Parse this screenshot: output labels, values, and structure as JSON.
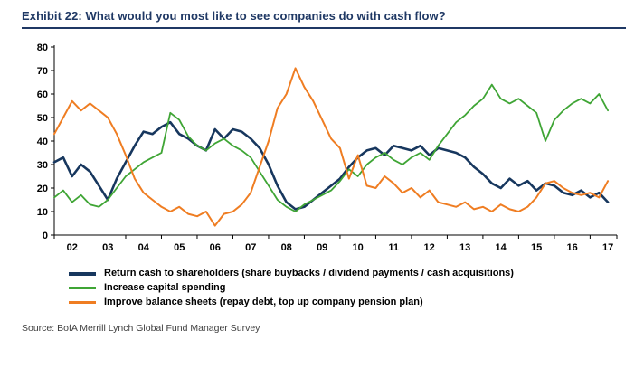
{
  "header": {
    "title": "Exhibit 22: What would you most like to see companies do with cash flow?"
  },
  "footer": {
    "source": "Source: BofA Merrill Lynch Global Fund Manager Survey"
  },
  "colors": {
    "title_navy": "#1F3864",
    "axis_black": "#000000"
  },
  "chart_data": {
    "type": "line",
    "title": "Exhibit 22: What would you most like to see companies do with cash flow?",
    "xlabel": "",
    "ylabel": "",
    "xlim": [
      2002,
      2017.75
    ],
    "ylim": [
      0,
      80
    ],
    "y_ticks": [
      0,
      10,
      20,
      30,
      40,
      50,
      60,
      70,
      80
    ],
    "x_tick_labels": [
      "02",
      "03",
      "04",
      "05",
      "06",
      "07",
      "08",
      "09",
      "10",
      "11",
      "12",
      "13",
      "14",
      "15",
      "16",
      "17"
    ],
    "grid": false,
    "legend_position": "bottom",
    "x": [
      2002,
      2002.25,
      2002.5,
      2002.75,
      2003,
      2003.25,
      2003.5,
      2003.75,
      2004,
      2004.25,
      2004.5,
      2004.75,
      2005,
      2005.25,
      2005.5,
      2005.75,
      2006,
      2006.25,
      2006.5,
      2006.75,
      2007,
      2007.25,
      2007.5,
      2007.75,
      2008,
      2008.25,
      2008.5,
      2008.75,
      2009,
      2009.25,
      2009.5,
      2009.75,
      2010,
      2010.25,
      2010.5,
      2010.75,
      2011,
      2011.25,
      2011.5,
      2011.75,
      2012,
      2012.25,
      2012.5,
      2012.75,
      2013,
      2013.25,
      2013.5,
      2013.75,
      2014,
      2014.25,
      2014.5,
      2014.75,
      2015,
      2015.25,
      2015.5,
      2015.75,
      2016,
      2016.25,
      2016.5,
      2016.75,
      2017,
      2017.25,
      2017.5
    ],
    "series": [
      {
        "name": "Return cash to shareholders (share buybacks / dividend payments / cash acquisitions)",
        "color": "#17375E",
        "width": 2.6,
        "values": [
          31,
          33,
          25,
          30,
          27,
          21,
          15,
          24,
          31,
          38,
          44,
          43,
          46,
          48,
          43,
          41,
          38,
          36,
          45,
          41,
          45,
          44,
          41,
          37,
          30,
          21,
          14,
          11,
          12,
          15,
          18,
          21,
          24,
          29,
          33,
          36,
          37,
          34,
          38,
          37,
          36,
          38,
          34,
          37,
          36,
          35,
          33,
          29,
          26,
          22,
          20,
          24,
          21,
          23,
          19,
          22,
          21,
          18,
          17,
          19,
          16,
          18,
          14
        ]
      },
      {
        "name": "Increase capital spending",
        "color": "#3FA535",
        "width": 1.8,
        "values": [
          16,
          19,
          14,
          17,
          13,
          12,
          15,
          20,
          25,
          28,
          31,
          33,
          35,
          52,
          49,
          42,
          38,
          36,
          39,
          41,
          38,
          36,
          33,
          27,
          21,
          15,
          12,
          10,
          13,
          15,
          17,
          19,
          23,
          28,
          25,
          30,
          33,
          35,
          32,
          30,
          33,
          35,
          32,
          38,
          43,
          48,
          51,
          55,
          58,
          64,
          58,
          56,
          58,
          55,
          52,
          40,
          49,
          53,
          56,
          58,
          56,
          60,
          53
        ]
      },
      {
        "name": "Improve balance sheets (repay debt, top up company pension plan)",
        "color": "#EF7D22",
        "width": 2.0,
        "values": [
          43,
          50,
          57,
          53,
          56,
          53,
          50,
          43,
          34,
          24,
          18,
          15,
          12,
          10,
          12,
          9,
          8,
          10,
          4,
          9,
          10,
          13,
          18,
          29,
          40,
          54,
          60,
          71,
          63,
          57,
          49,
          41,
          37,
          24,
          34,
          21,
          20,
          25,
          22,
          18,
          20,
          16,
          19,
          14,
          13,
          12,
          14,
          11,
          12,
          10,
          13,
          11,
          10,
          12,
          16,
          22,
          23,
          20,
          18,
          17,
          18,
          16,
          23
        ]
      }
    ]
  }
}
